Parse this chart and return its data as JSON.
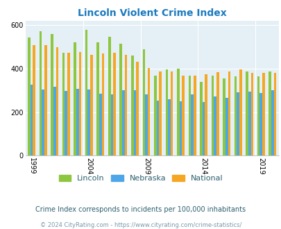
{
  "title": "Lincoln Violent Crime Index",
  "years": [
    1999,
    2000,
    2001,
    2002,
    2003,
    2004,
    2005,
    2006,
    2007,
    2008,
    2009,
    2010,
    2011,
    2012,
    2013,
    2014,
    2015,
    2016,
    2017,
    2018,
    2019,
    2020
  ],
  "lincoln": [
    543,
    572,
    558,
    473,
    519,
    577,
    520,
    545,
    513,
    461,
    488,
    368,
    396,
    399,
    368,
    338,
    368,
    356,
    363,
    385,
    363,
    385
  ],
  "nebraska": [
    325,
    305,
    315,
    297,
    307,
    305,
    285,
    282,
    302,
    302,
    280,
    252,
    258,
    250,
    280,
    248,
    272,
    265,
    290,
    295,
    288,
    302
  ],
  "national": [
    506,
    506,
    498,
    474,
    476,
    463,
    470,
    473,
    463,
    430,
    403,
    386,
    388,
    368,
    368,
    373,
    383,
    385,
    395,
    380,
    380,
    380
  ],
  "lincoln_color": "#8dc63f",
  "nebraska_color": "#4da6e8",
  "national_color": "#f5a623",
  "bg_color": "#e4f0f5",
  "ylim": [
    0,
    620
  ],
  "yticks": [
    0,
    200,
    400,
    600
  ],
  "xtick_years": [
    1999,
    2004,
    2009,
    2014,
    2019
  ],
  "subtitle": "Crime Index corresponds to incidents per 100,000 inhabitants",
  "footer": "© 2024 CityRating.com - https://www.cityrating.com/crime-statistics/",
  "legend_labels": [
    "Lincoln",
    "Nebraska",
    "National"
  ],
  "title_color": "#1a7abf",
  "subtitle_color": "#2c5f6e",
  "footer_color": "#7a9aaa"
}
